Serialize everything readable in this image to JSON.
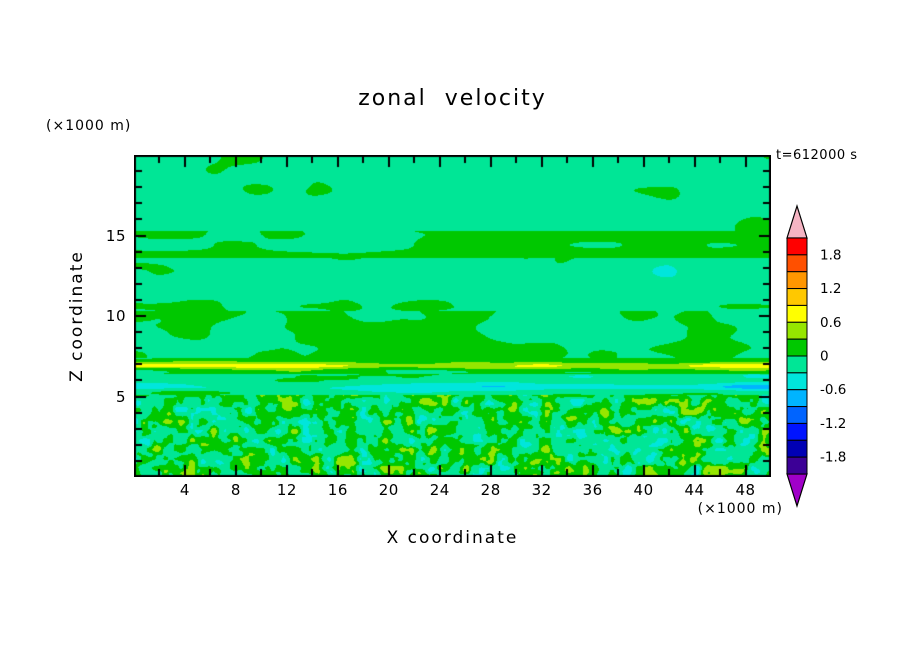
{
  "chart_data": {
    "type": "heatmap",
    "title": "zonal velocity",
    "annotation": "t=612000 s",
    "xlabel": "X coordinate",
    "ylabel": "Z coordinate",
    "x_unit_label": "(×1000 m)",
    "y_unit_label": "(×1000 m)",
    "x_range": [
      0,
      50
    ],
    "z_range": [
      0,
      20
    ],
    "x_ticks_major": [
      4,
      8,
      12,
      16,
      20,
      24,
      28,
      32,
      36,
      40,
      44,
      48
    ],
    "x_tick_minor_step": 2,
    "y_ticks_major": [
      5,
      10,
      15
    ],
    "y_tick_minor_step": 1,
    "grid": false,
    "legend_position": "right-colorbar",
    "colorbar": {
      "tick_labels": [
        "1.8",
        "1.2",
        "0.6",
        "0",
        "-0.6",
        "-1.2",
        "-1.8"
      ],
      "tick_values": [
        1.8,
        1.2,
        0.6,
        0,
        -0.6,
        -1.2,
        -1.8
      ],
      "value_top": 2.1,
      "value_bottom": -2.1,
      "segment_step": 0.3,
      "segment_colors_top_to_bottom": [
        "#FF0000",
        "#FF5000",
        "#FF9600",
        "#FFC800",
        "#FFFF00",
        "#96E600",
        "#00C800",
        "#00E696",
        "#00E6DC",
        "#00B4FF",
        "#0064FF",
        "#0014FF",
        "#0000B4",
        "#3C0096"
      ],
      "arrow_top_color": "#F5B4C3",
      "arrow_bottom_color": "#A000C8"
    },
    "field_model": {
      "description": "Zonal velocity cross-section: mostly near-zero greens (-0.3 to 0.3) in horizontal bands; thin positive (yellow, ~+0.7) shear streak near z=6.9; thin negative (cyan, ~-0.7) streak near z=5.6; fine-grained turbulent mottling with sparse yellow/cyan specks below z=5.",
      "seed": 7,
      "layers": [
        {
          "z_from": 15.3,
          "z_to": 20.0,
          "base": -0.12,
          "amp": 0.22,
          "scale_x": 7.0,
          "scale_z": 2.2
        },
        {
          "z_from": 13.6,
          "z_to": 15.3,
          "base": 0.06,
          "amp": 0.2,
          "scale_x": 9.0,
          "scale_z": 1.4
        },
        {
          "z_from": 10.3,
          "z_to": 13.6,
          "base": -0.1,
          "amp": 0.26,
          "scale_x": 6.0,
          "scale_z": 1.1
        },
        {
          "z_from": 7.4,
          "z_to": 10.3,
          "base": -0.02,
          "amp": 0.25,
          "scale_x": 5.0,
          "scale_z": 1.3
        },
        {
          "z_from": 6.4,
          "z_to": 7.4,
          "base": 0.1,
          "amp": 0.3,
          "scale_x": 7.0,
          "scale_z": 0.5,
          "ridge": {
            "z_center": 6.9,
            "half_width": 0.14,
            "amp": 0.65
          }
        },
        {
          "z_from": 5.1,
          "z_to": 6.4,
          "base": -0.12,
          "amp": 0.28,
          "scale_x": 7.0,
          "scale_z": 0.5,
          "ridge": {
            "z_center": 5.6,
            "half_width": 0.16,
            "amp": -0.55
          }
        },
        {
          "z_from": 0.0,
          "z_to": 5.1,
          "base": 0.02,
          "amp": 0.62,
          "scale_x": 0.9,
          "scale_z": 0.6
        }
      ]
    },
    "background_color": "#FFFFFF",
    "frame_color": "#000000"
  }
}
